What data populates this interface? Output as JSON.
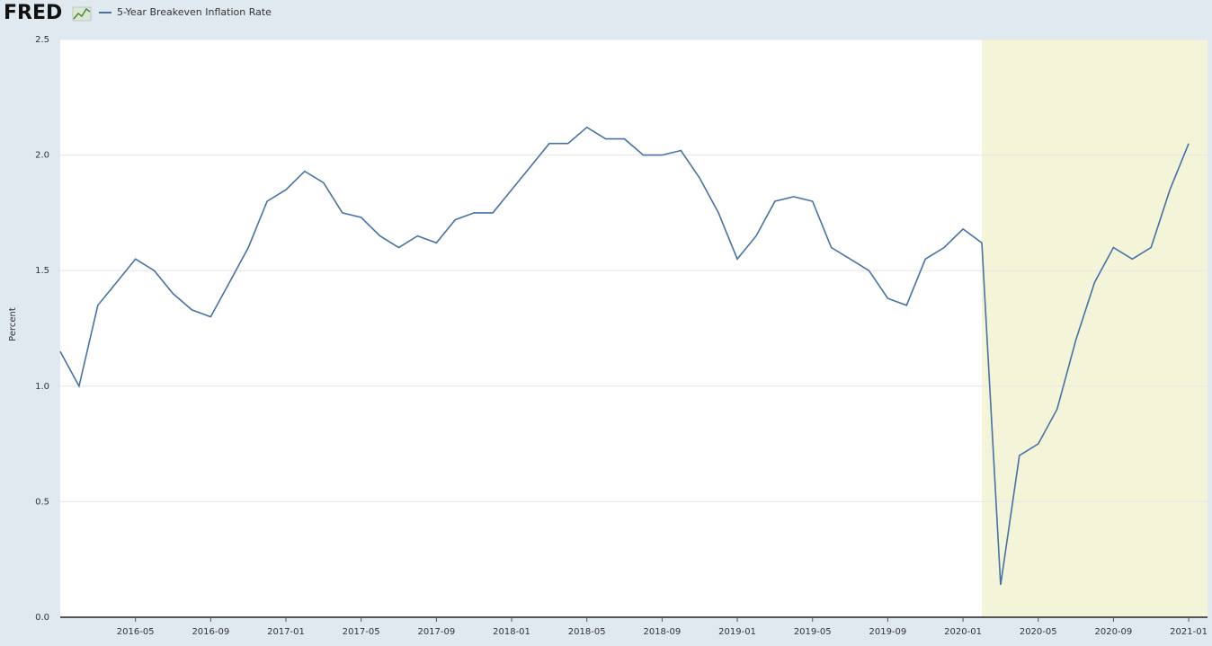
{
  "chart_data": {
    "type": "line",
    "logo": "FRED",
    "y_label": "Percent",
    "x": [
      "2016-01",
      "2016-02",
      "2016-03",
      "2016-04",
      "2016-05",
      "2016-06",
      "2016-07",
      "2016-08",
      "2016-09",
      "2016-10",
      "2016-11",
      "2016-12",
      "2017-01",
      "2017-02",
      "2017-03",
      "2017-04",
      "2017-05",
      "2017-06",
      "2017-07",
      "2017-08",
      "2017-09",
      "2017-10",
      "2017-11",
      "2017-12",
      "2018-01",
      "2018-02",
      "2018-03",
      "2018-04",
      "2018-05",
      "2018-06",
      "2018-07",
      "2018-08",
      "2018-09",
      "2018-10",
      "2018-11",
      "2018-12",
      "2019-01",
      "2019-02",
      "2019-03",
      "2019-04",
      "2019-05",
      "2019-06",
      "2019-07",
      "2019-08",
      "2019-09",
      "2019-10",
      "2019-11",
      "2019-12",
      "2020-01",
      "2020-02",
      "2020-03",
      "2020-04",
      "2020-05",
      "2020-06",
      "2020-07",
      "2020-08",
      "2020-09",
      "2020-10",
      "2020-11",
      "2020-12",
      "2021-01"
    ],
    "series": [
      {
        "name": "5-Year Breakeven Inflation Rate",
        "color": "#4572a7",
        "values": [
          1.15,
          1.0,
          1.35,
          1.45,
          1.55,
          1.5,
          1.4,
          1.33,
          1.3,
          1.45,
          1.6,
          1.8,
          1.85,
          1.93,
          1.88,
          1.75,
          1.73,
          1.65,
          1.6,
          1.65,
          1.62,
          1.72,
          1.75,
          1.75,
          1.85,
          1.95,
          2.05,
          2.05,
          2.12,
          2.07,
          2.07,
          2.0,
          2.0,
          2.02,
          1.9,
          1.75,
          1.55,
          1.65,
          1.8,
          1.82,
          1.8,
          1.6,
          1.55,
          1.5,
          1.38,
          1.35,
          1.55,
          1.6,
          1.68,
          1.62,
          0.14,
          0.7,
          0.75,
          0.9,
          1.2,
          1.45,
          1.6,
          1.55,
          1.6,
          1.85,
          2.05
        ]
      }
    ],
    "xlim": [
      "2016-01",
      "2021-02"
    ],
    "xticks": [
      "2016-05",
      "2016-09",
      "2017-01",
      "2017-05",
      "2017-09",
      "2018-01",
      "2018-05",
      "2018-09",
      "2019-01",
      "2019-05",
      "2019-09",
      "2020-01",
      "2020-05",
      "2020-09",
      "2021-01"
    ],
    "ylim": [
      0,
      2.5
    ],
    "yticks": [
      {
        "value": 0,
        "label": "0.0"
      },
      0.5,
      {
        "value": 1,
        "label": "1.0"
      },
      1.5,
      {
        "value": 2,
        "label": "2.0"
      },
      2.5
    ],
    "grid": true,
    "shaded_start": "2020-02",
    "shade_color": "#f4f4d8"
  }
}
